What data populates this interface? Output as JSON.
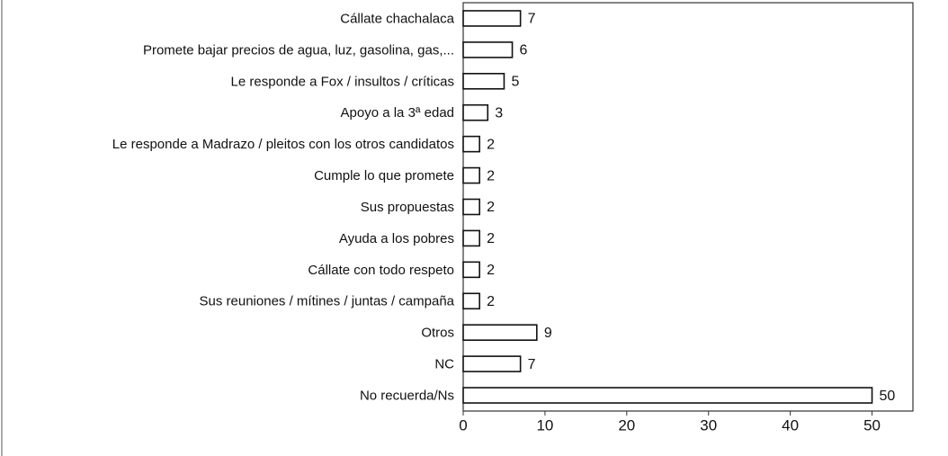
{
  "chart_data": {
    "type": "hbar",
    "categories": [
      "Cállate chachalaca",
      "Promete bajar precios de agua, luz, gasolina, gas,...",
      "Le responde a Fox / insultos / críticas",
      "Apoyo a la 3ª edad",
      "Le responde a Madrazo / pleitos con los otros candidatos",
      "Cumple lo que promete",
      "Sus propuestas",
      "Ayuda a los pobres",
      "Cállate con todo respeto",
      "Sus reuniones / mítines / juntas / campaña",
      "Otros",
      "NC",
      "No recuerda/Ns"
    ],
    "values": [
      7,
      6,
      5,
      3,
      2,
      2,
      2,
      2,
      2,
      2,
      9,
      7,
      50
    ],
    "color": "#ffffff",
    "xlim": [
      0,
      55
    ],
    "xticks": [
      0,
      10,
      20,
      30,
      40,
      50
    ],
    "grid": false
  }
}
